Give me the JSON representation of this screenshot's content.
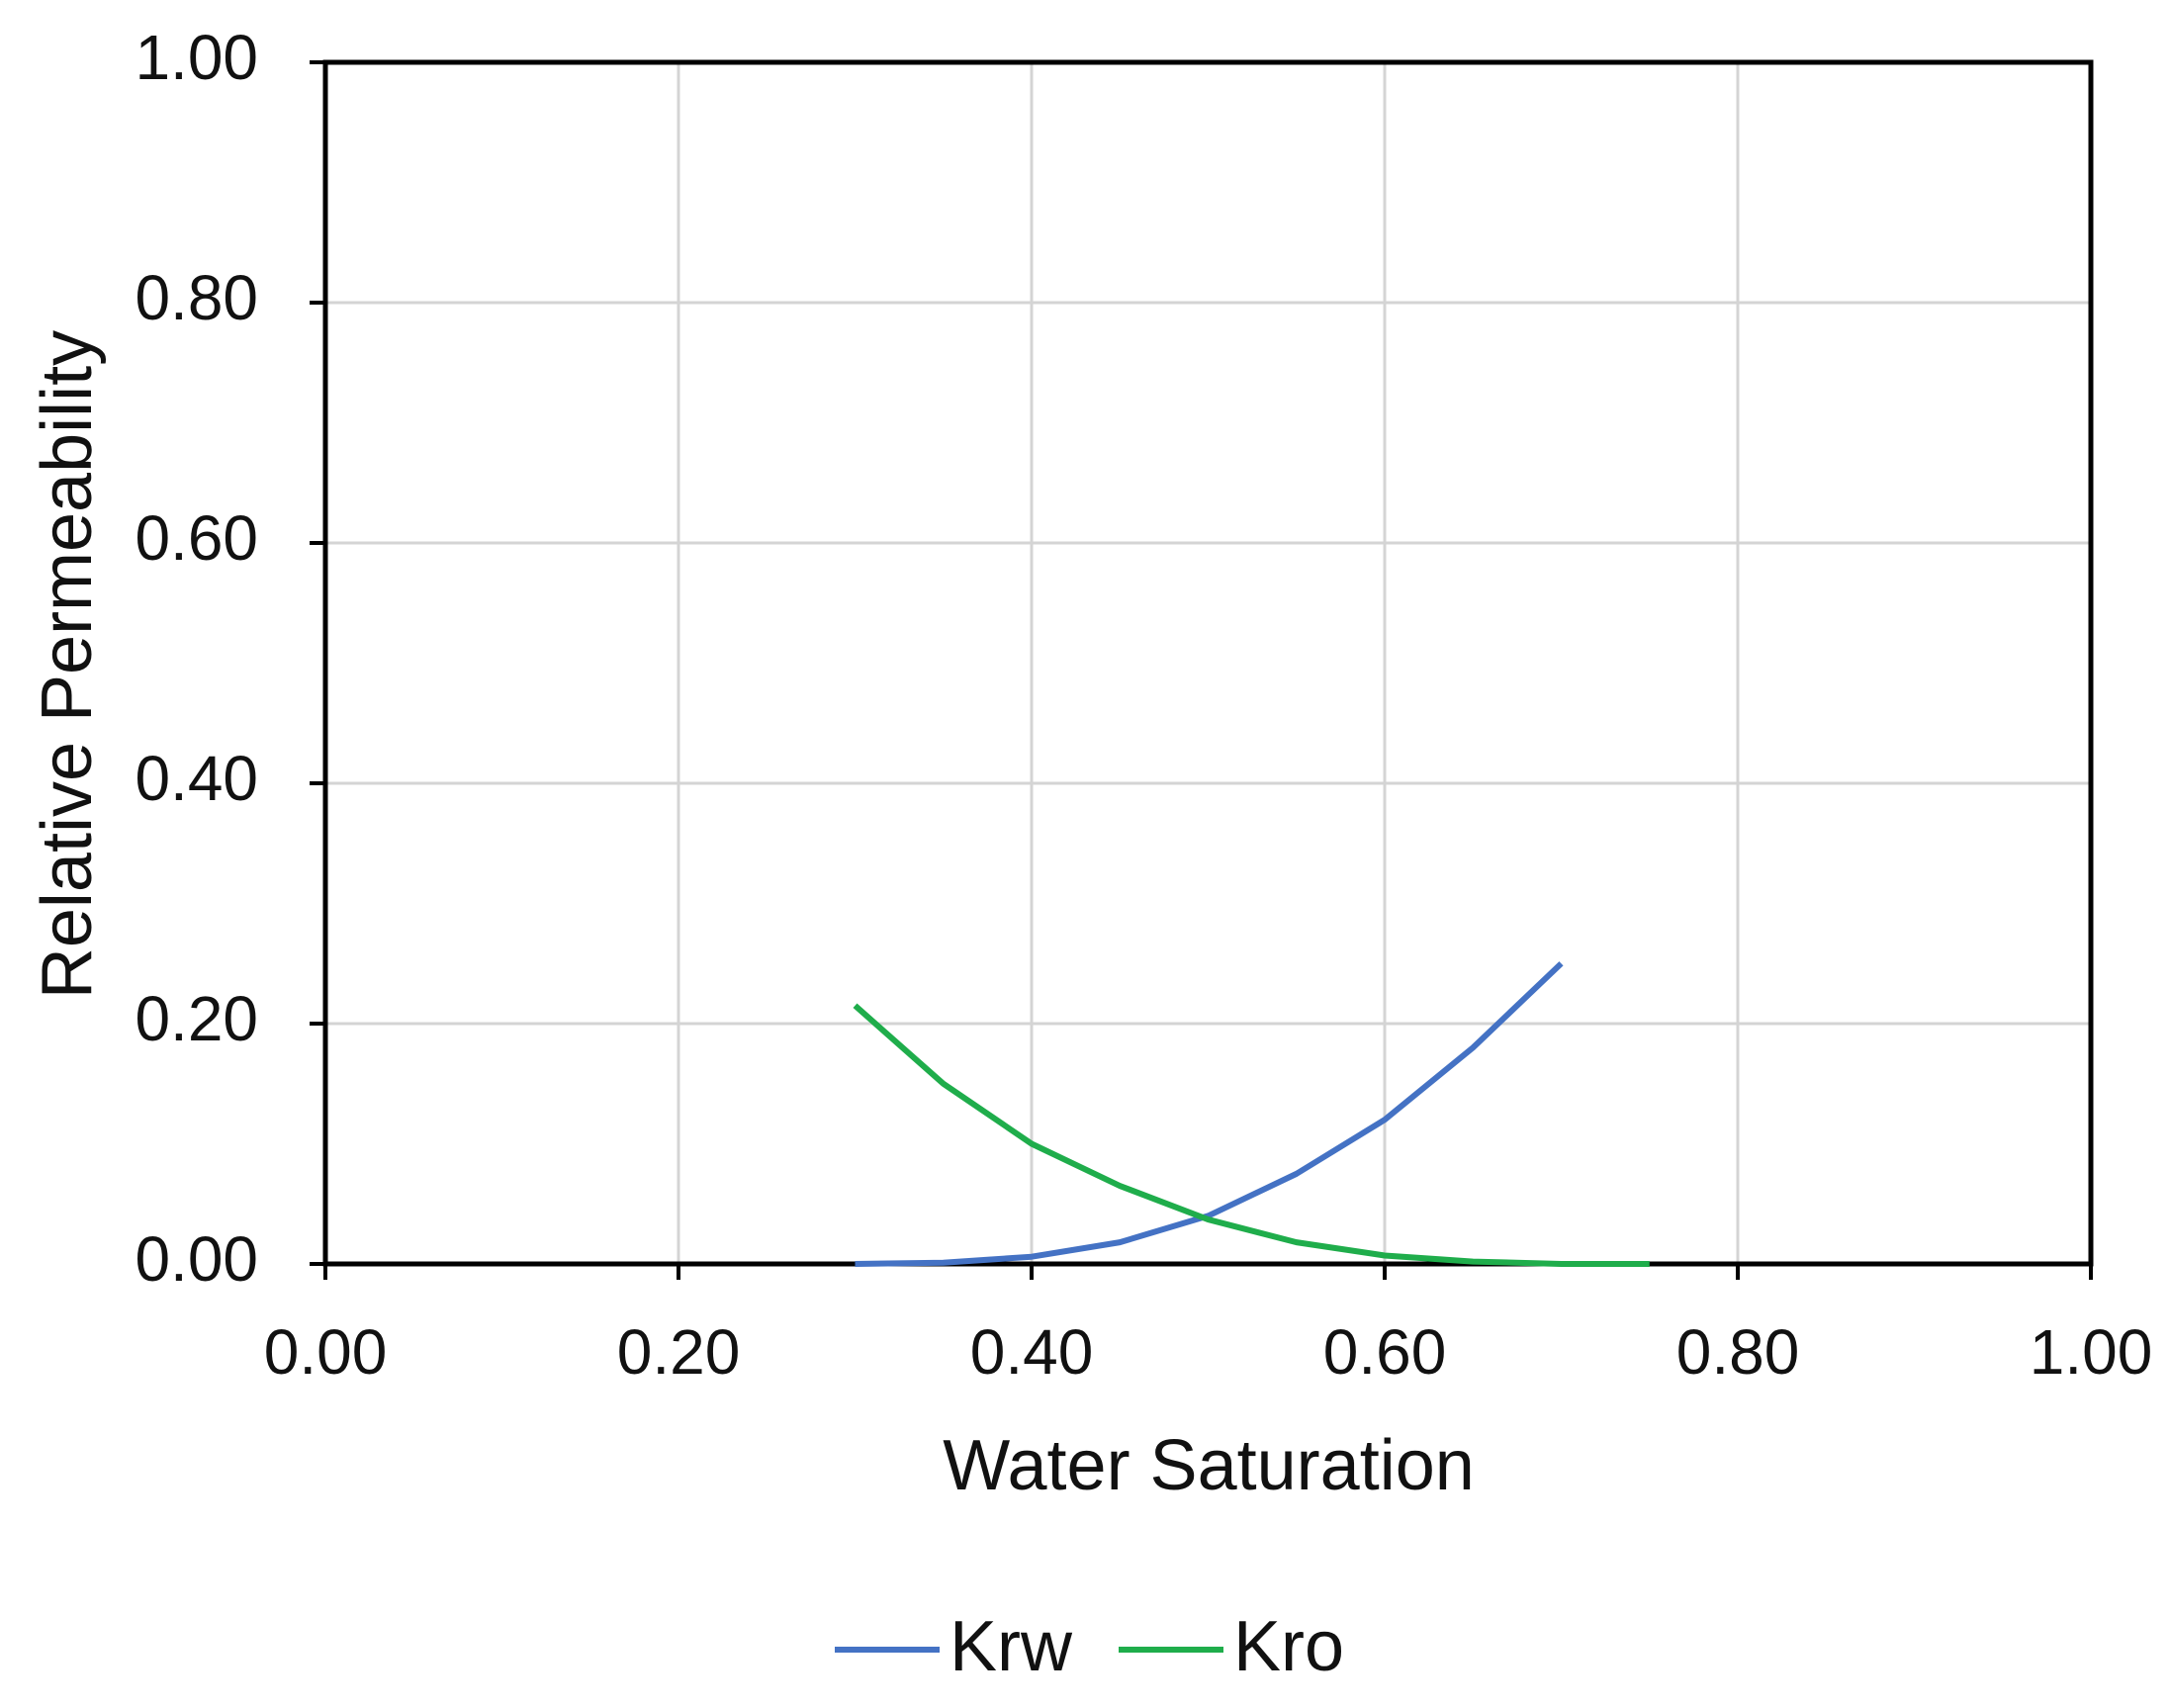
{
  "chart_data": {
    "type": "line",
    "x_label": "Water Saturation",
    "y_label": "Relative Permeability",
    "x": [
      0.3,
      0.35,
      0.4,
      0.45,
      0.5,
      0.55,
      0.6,
      0.65,
      0.7,
      0.75
    ],
    "series": [
      {
        "name": "Krw",
        "color": "#4472c4",
        "values": [
          0,
          0.001,
          0.006,
          0.018,
          0.04,
          0.075,
          0.12,
          0.18,
          0.25,
          null
        ]
      },
      {
        "name": "Kro",
        "color": "#1fad4b",
        "values": [
          0.215,
          0.15,
          0.1,
          0.065,
          0.037,
          0.018,
          0.007,
          0.002,
          0.0,
          0.0
        ]
      }
    ],
    "xlim": [
      0,
      1
    ],
    "ylim": [
      0,
      1
    ],
    "xticks": [
      {
        "value": 0,
        "label": "0.00"
      },
      {
        "value": 0.2,
        "label": "0.20"
      },
      {
        "value": 0.4,
        "label": "0.40"
      },
      {
        "value": 0.6,
        "label": "0.60"
      },
      {
        "value": 0.8,
        "label": "0.80"
      },
      {
        "value": 1,
        "label": "1.00"
      }
    ],
    "yticks": [
      {
        "value": 0,
        "label": "0.00"
      },
      {
        "value": 0.2,
        "label": "0.20"
      },
      {
        "value": 0.4,
        "label": "0.40"
      },
      {
        "value": 0.6,
        "label": "0.60"
      },
      {
        "value": 0.8,
        "label": "0.80"
      },
      {
        "value": 1,
        "label": "1.00"
      }
    ],
    "grid": true,
    "legend": "bottom"
  }
}
